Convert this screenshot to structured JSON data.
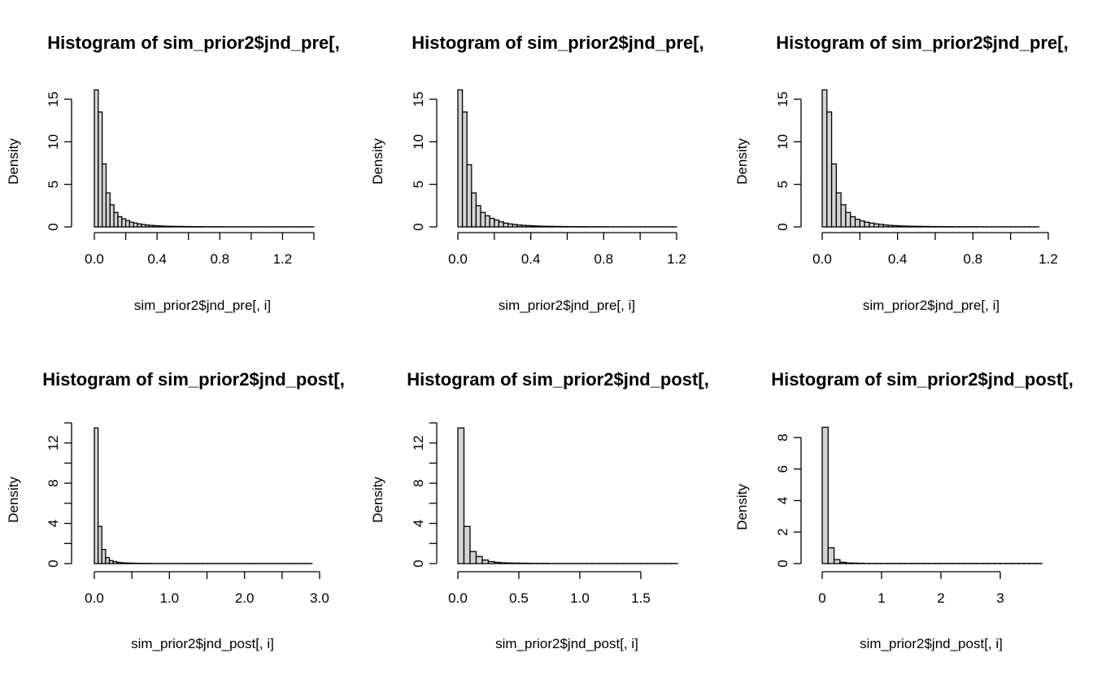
{
  "chart_data": [
    {
      "type": "histogram",
      "title": "Histogram of sim_prior2$jnd_pre[,",
      "xlabel": "sim_prior2$jnd_pre[, i]",
      "ylabel": "Density",
      "bin_width": 0.025,
      "bin_start": 0,
      "densities": [
        16.1,
        13.5,
        7.4,
        4.0,
        2.6,
        1.7,
        1.2,
        0.95,
        0.75,
        0.55,
        0.45,
        0.35,
        0.28,
        0.22,
        0.18,
        0.15,
        0.12,
        0.1,
        0.08,
        0.07,
        0.06,
        0.05,
        0.05,
        0.04,
        0.04,
        0.03,
        0.03,
        0.03,
        0.02,
        0.02,
        0.02,
        0.02,
        0.02,
        0.01,
        0.01,
        0.01,
        0.01,
        0.01,
        0.01,
        0.01,
        0.01,
        0.01,
        0.01,
        0.01,
        0.01,
        0.01,
        0.01,
        0.01,
        0.01,
        0.01,
        0.01,
        0.01,
        0.01,
        0.01,
        0.01,
        0.01
      ],
      "xlim": [
        0,
        1.4
      ],
      "x_ticks": [
        0,
        0.2,
        0.4,
        0.6,
        0.8,
        1.0,
        1.2,
        1.4
      ],
      "x_tick_labels": [
        "0.0",
        "",
        "0.4",
        "",
        "0.8",
        "",
        "1.2",
        ""
      ],
      "ylim": [
        0,
        15
      ],
      "y_ticks": [
        0,
        5,
        10,
        15
      ],
      "y_tick_labels": [
        "0",
        "5",
        "10",
        "15"
      ]
    },
    {
      "type": "histogram",
      "title": "Histogram of sim_prior2$jnd_pre[,",
      "xlabel": "sim_prior2$jnd_pre[, i]",
      "ylabel": "Density",
      "bin_width": 0.025,
      "bin_start": 0,
      "densities": [
        16.1,
        13.5,
        7.3,
        4.0,
        2.5,
        1.7,
        1.3,
        1.0,
        0.8,
        0.6,
        0.45,
        0.35,
        0.28,
        0.22,
        0.18,
        0.15,
        0.12,
        0.1,
        0.08,
        0.07,
        0.06,
        0.05,
        0.05,
        0.04,
        0.04,
        0.03,
        0.03,
        0.03,
        0.02,
        0.02,
        0.02,
        0.02,
        0.02,
        0.01,
        0.01,
        0.01,
        0.01,
        0.01,
        0.01,
        0.01,
        0.01,
        0.01,
        0.01,
        0.01,
        0.01,
        0.01,
        0.01,
        0.01
      ],
      "xlim": [
        0,
        1.2
      ],
      "x_ticks": [
        0,
        0.2,
        0.4,
        0.6,
        0.8,
        1.0,
        1.2
      ],
      "x_tick_labels": [
        "0.0",
        "",
        "0.4",
        "",
        "0.8",
        "",
        "1.2"
      ],
      "ylim": [
        0,
        15
      ],
      "y_ticks": [
        0,
        5,
        10,
        15
      ],
      "y_tick_labels": [
        "0",
        "5",
        "10",
        "15"
      ]
    },
    {
      "type": "histogram",
      "title": "Histogram of sim_prior2$jnd_pre[,",
      "xlabel": "sim_prior2$jnd_pre[, i]",
      "ylabel": "Density",
      "bin_width": 0.025,
      "bin_start": 0,
      "densities": [
        16.1,
        13.5,
        7.4,
        4.0,
        2.6,
        1.7,
        1.2,
        0.9,
        0.7,
        0.55,
        0.45,
        0.35,
        0.3,
        0.22,
        0.18,
        0.15,
        0.12,
        0.1,
        0.08,
        0.07,
        0.06,
        0.05,
        0.05,
        0.04,
        0.04,
        0.03,
        0.03,
        0.03,
        0.02,
        0.02,
        0.02,
        0.02,
        0.02,
        0.01,
        0.01,
        0.01,
        0.01,
        0.01,
        0.01,
        0.01,
        0.01,
        0.01,
        0.01,
        0.01,
        0.01,
        0.01
      ],
      "xlim": [
        0,
        1.2
      ],
      "x_ticks": [
        0,
        0.2,
        0.4,
        0.6,
        0.8,
        1.0,
        1.2
      ],
      "x_tick_labels": [
        "0.0",
        "",
        "0.4",
        "",
        "0.8",
        "",
        "1.2"
      ],
      "ylim": [
        0,
        15
      ],
      "y_ticks": [
        0,
        5,
        10,
        15
      ],
      "y_tick_labels": [
        "0",
        "5",
        "10",
        "15"
      ]
    },
    {
      "type": "histogram",
      "title": "Histogram of sim_prior2$jnd_post[,",
      "xlabel": "sim_prior2$jnd_post[, i]",
      "ylabel": "Density",
      "bin_width": 0.05,
      "bin_start": 0,
      "densities": [
        13.5,
        3.7,
        1.4,
        0.6,
        0.3,
        0.2,
        0.12,
        0.08,
        0.06,
        0.05,
        0.04,
        0.03,
        0.02,
        0.02,
        0.02,
        0.01,
        0.01,
        0.01,
        0.01,
        0.01,
        0.01,
        0.01,
        0.01,
        0.01,
        0.01,
        0.01,
        0.01,
        0.01,
        0.01,
        0.01,
        0.01,
        0.01,
        0.01,
        0.01,
        0.01,
        0.01,
        0.01,
        0.01,
        0.01,
        0.01,
        0.01,
        0.01,
        0.01,
        0.01,
        0.01,
        0.01,
        0.01,
        0.01,
        0.01,
        0.01,
        0.01,
        0.01,
        0.01,
        0.01,
        0.01,
        0.01,
        0.01,
        0.01
      ],
      "xlim": [
        0,
        3.0
      ],
      "x_ticks": [
        0,
        0.5,
        1.0,
        1.5,
        2.0,
        2.5,
        3.0
      ],
      "x_tick_labels": [
        "0.0",
        "",
        "1.0",
        "",
        "2.0",
        "",
        "3.0"
      ],
      "ylim": [
        0,
        14
      ],
      "y_ticks": [
        0,
        2,
        4,
        6,
        8,
        10,
        12,
        14
      ],
      "y_tick_labels": [
        "0",
        "",
        "4",
        "",
        "8",
        "",
        "12",
        ""
      ]
    },
    {
      "type": "histogram",
      "title": "Histogram of sim_prior2$jnd_post[,",
      "xlabel": "sim_prior2$jnd_post[, i]",
      "ylabel": "Density",
      "bin_width": 0.05,
      "bin_start": 0,
      "densities": [
        13.5,
        3.7,
        1.2,
        0.7,
        0.35,
        0.2,
        0.12,
        0.08,
        0.06,
        0.05,
        0.04,
        0.03,
        0.02,
        0.02,
        0.02,
        0.01,
        0.01,
        0.01,
        0.01,
        0.01,
        0.01,
        0.01,
        0.01,
        0.01,
        0.01,
        0.01,
        0.01,
        0.01,
        0.01,
        0.01,
        0.01,
        0.01,
        0.01,
        0.01,
        0.01,
        0.01
      ],
      "xlim": [
        0,
        1.5
      ],
      "x_ticks": [
        0,
        0.5,
        1.0,
        1.5
      ],
      "x_tick_labels": [
        "0.0",
        "0.5",
        "1.0",
        "1.5"
      ],
      "ylim": [
        0,
        14
      ],
      "y_ticks": [
        0,
        2,
        4,
        6,
        8,
        10,
        12,
        14
      ],
      "y_tick_labels": [
        "0",
        "",
        "4",
        "",
        "8",
        "",
        "12",
        ""
      ]
    },
    {
      "type": "histogram",
      "title": "Histogram of sim_prior2$jnd_post[,",
      "xlabel": "sim_prior2$jnd_post[, i]",
      "ylabel": "Density",
      "bin_width": 0.1,
      "bin_start": 0,
      "densities": [
        8.65,
        1.0,
        0.25,
        0.08,
        0.04,
        0.03,
        0.02,
        0.01,
        0.01,
        0.01,
        0.01,
        0.01,
        0.01,
        0.01,
        0.01,
        0.01,
        0.01,
        0.01,
        0.01,
        0.01,
        0.01,
        0.01,
        0.01,
        0.01,
        0.01,
        0.01,
        0.01,
        0.01,
        0.01,
        0.01,
        0.01,
        0.01,
        0.01,
        0.01,
        0.01,
        0.01,
        0.01
      ],
      "xlim": [
        0,
        3
      ],
      "x_ticks": [
        0,
        1,
        2,
        3
      ],
      "x_tick_labels": [
        "0",
        "1",
        "2",
        "3"
      ],
      "ylim": [
        0,
        8
      ],
      "y_ticks": [
        0,
        2,
        4,
        6,
        8
      ],
      "y_tick_labels": [
        "0",
        "2",
        "4",
        "6",
        "8"
      ]
    }
  ]
}
